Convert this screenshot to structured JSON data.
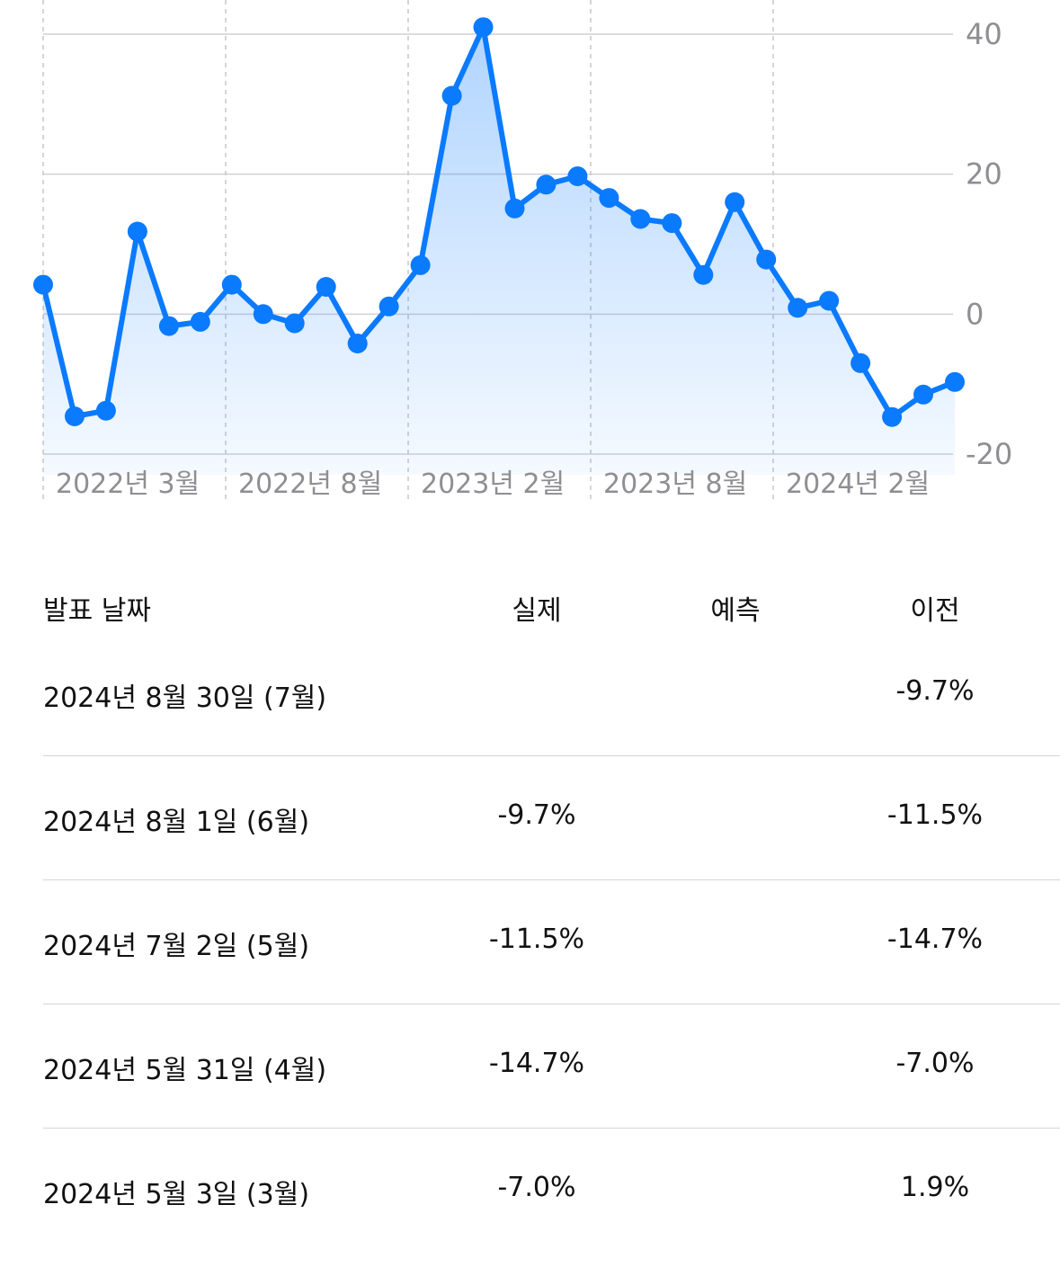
{
  "chart_data": {
    "type": "area",
    "x_ticks": [
      "2022년 3월",
      "2022년 8월",
      "2023년 2월",
      "2023년 8월",
      "2024년 2월"
    ],
    "y_ticks": [
      "40",
      "20",
      "0",
      "-20"
    ],
    "ylim": [
      -20,
      40
    ],
    "grid": true,
    "line_color": "#0a7aff",
    "series": [
      {
        "values": [
          4.2,
          -14.6,
          -13.8,
          11.8,
          -1.7,
          -1.1,
          4.2,
          0.0,
          -1.3,
          3.9,
          -4.2,
          1.1,
          7.0,
          31.2,
          41.0,
          15.1,
          18.5,
          19.7,
          16.6,
          13.6,
          13.0,
          5.6,
          16.0,
          7.8,
          0.9,
          1.9,
          -7.0,
          -14.7,
          -11.5,
          -9.7
        ]
      }
    ]
  },
  "table": {
    "headers": {
      "date": "발표 날짜",
      "actual": "실제",
      "forecast": "예측",
      "previous": "이전"
    },
    "rows": [
      {
        "date": "2024년 8월 30일 (7월)",
        "actual": "",
        "forecast": "",
        "previous": "-9.7%"
      },
      {
        "date": "2024년 8월 1일 (6월)",
        "actual": "-9.7%",
        "forecast": "",
        "previous": "-11.5%"
      },
      {
        "date": "2024년 7월 2일 (5월)",
        "actual": "-11.5%",
        "forecast": "",
        "previous": "-14.7%"
      },
      {
        "date": "2024년 5월 31일 (4월)",
        "actual": "-14.7%",
        "forecast": "",
        "previous": "-7.0%"
      },
      {
        "date": "2024년 5월 3일 (3월)",
        "actual": "-7.0%",
        "forecast": "",
        "previous": "1.9%"
      }
    ]
  }
}
